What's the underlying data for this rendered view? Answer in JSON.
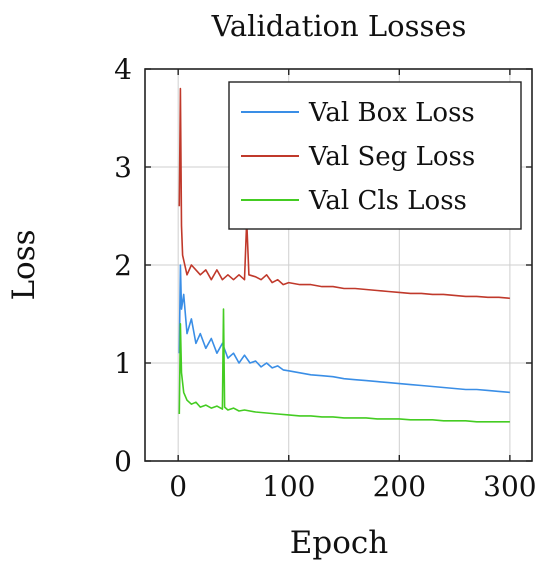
{
  "chart_data": {
    "type": "line",
    "title": "Validation Losses",
    "xlabel": "Epoch",
    "ylabel": "Loss",
    "xlim": [
      -30,
      320
    ],
    "ylim": [
      0,
      4
    ],
    "xticks": [
      0,
      100,
      200,
      300
    ],
    "yticks": [
      0,
      1,
      2,
      3,
      4
    ],
    "grid": true,
    "legend_position": "top-right",
    "series": [
      {
        "name": "Val Box Loss",
        "color": "#3a8ee6",
        "x": [
          1,
          2,
          3,
          5,
          8,
          12,
          16,
          20,
          25,
          30,
          35,
          40,
          45,
          50,
          55,
          60,
          65,
          70,
          75,
          80,
          85,
          90,
          95,
          100,
          110,
          120,
          130,
          140,
          150,
          160,
          170,
          180,
          190,
          200,
          210,
          220,
          230,
          240,
          250,
          260,
          270,
          280,
          290,
          300
        ],
        "y": [
          1.1,
          2.0,
          1.55,
          1.7,
          1.3,
          1.45,
          1.2,
          1.3,
          1.15,
          1.25,
          1.1,
          1.2,
          1.05,
          1.1,
          1.0,
          1.08,
          1.0,
          1.02,
          0.96,
          1.0,
          0.95,
          0.97,
          0.93,
          0.92,
          0.9,
          0.88,
          0.87,
          0.86,
          0.84,
          0.83,
          0.82,
          0.81,
          0.8,
          0.79,
          0.78,
          0.77,
          0.76,
          0.75,
          0.74,
          0.73,
          0.73,
          0.72,
          0.71,
          0.7
        ]
      },
      {
        "name": "Val Seg Loss",
        "color": "#c0392b",
        "x": [
          1,
          2,
          3,
          4,
          6,
          8,
          12,
          16,
          20,
          25,
          30,
          35,
          40,
          45,
          50,
          55,
          60,
          62,
          64,
          70,
          75,
          80,
          85,
          90,
          95,
          100,
          110,
          120,
          130,
          140,
          150,
          160,
          170,
          180,
          190,
          200,
          210,
          220,
          230,
          240,
          250,
          260,
          270,
          280,
          290,
          300
        ],
        "y": [
          2.6,
          3.8,
          2.4,
          2.1,
          2.0,
          1.9,
          2.0,
          1.95,
          1.9,
          1.95,
          1.85,
          1.95,
          1.85,
          1.9,
          1.85,
          1.9,
          1.85,
          2.45,
          1.9,
          1.88,
          1.85,
          1.9,
          1.82,
          1.85,
          1.8,
          1.82,
          1.8,
          1.8,
          1.78,
          1.78,
          1.76,
          1.76,
          1.75,
          1.74,
          1.73,
          1.72,
          1.71,
          1.71,
          1.7,
          1.7,
          1.69,
          1.68,
          1.68,
          1.67,
          1.67,
          1.66
        ]
      },
      {
        "name": "Val Cls Loss",
        "color": "#44cc22",
        "x": [
          1,
          2,
          3,
          5,
          8,
          12,
          16,
          20,
          25,
          30,
          35,
          40,
          41,
          42,
          45,
          50,
          55,
          60,
          70,
          80,
          90,
          100,
          110,
          120,
          130,
          140,
          150,
          160,
          170,
          180,
          190,
          200,
          210,
          220,
          230,
          240,
          250,
          260,
          270,
          280,
          290,
          300
        ],
        "y": [
          0.48,
          1.4,
          0.9,
          0.7,
          0.62,
          0.58,
          0.6,
          0.55,
          0.57,
          0.54,
          0.56,
          0.53,
          1.55,
          0.55,
          0.52,
          0.54,
          0.51,
          0.52,
          0.5,
          0.49,
          0.48,
          0.47,
          0.46,
          0.46,
          0.45,
          0.45,
          0.44,
          0.44,
          0.44,
          0.43,
          0.43,
          0.43,
          0.42,
          0.42,
          0.42,
          0.41,
          0.41,
          0.41,
          0.4,
          0.4,
          0.4,
          0.4
        ]
      }
    ]
  }
}
